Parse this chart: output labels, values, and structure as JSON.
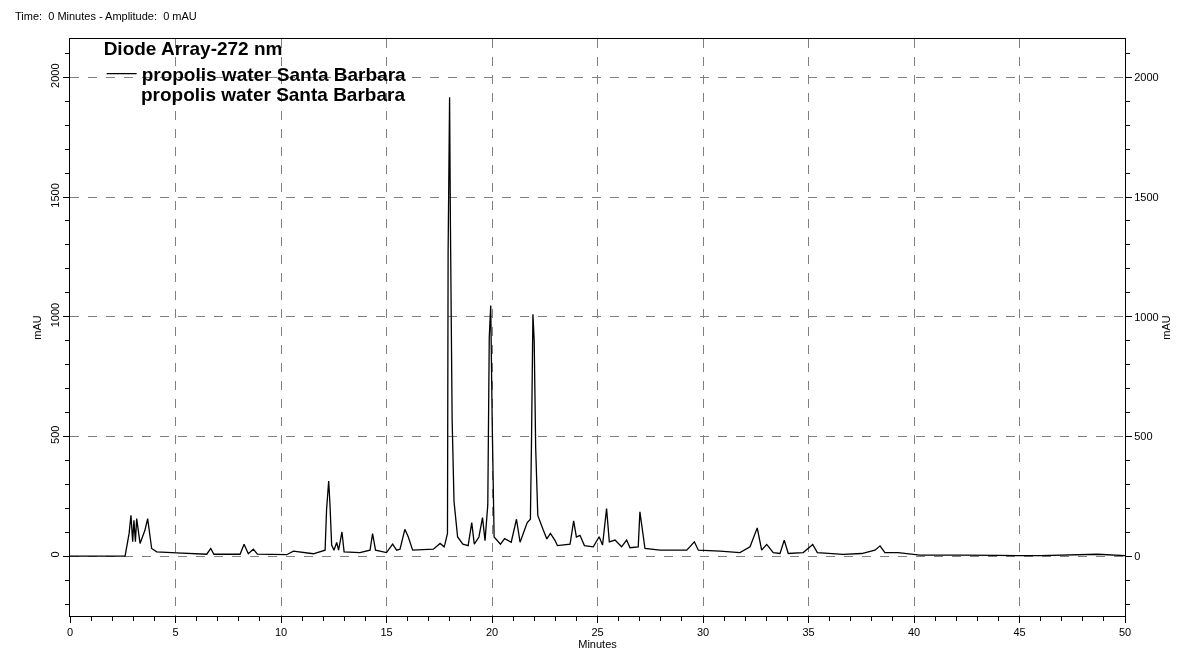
{
  "chart_data": {
    "type": "line",
    "title": "Time:  0 Minutes - Amplitude:  0 mAU",
    "xlabel": "Minutes",
    "ylabel": "mAU",
    "y2label": "mAU",
    "legend_title": "Diode Array-272 nm",
    "annotations": [
      "propolis water Santa Barbara"
    ],
    "legend": "top left",
    "grid": true,
    "line_style": "solid",
    "marker": "none",
    "xlim": [
      0,
      50
    ],
    "xticks": [
      0,
      {
        "value": 1,
        "label": null
      },
      {
        "value": 2,
        "label": null
      },
      {
        "value": 3,
        "label": null
      },
      {
        "value": 4,
        "label": null
      },
      5,
      {
        "value": 6,
        "label": null
      },
      {
        "value": 7,
        "label": null
      },
      {
        "value": 8,
        "label": null
      },
      {
        "value": 9,
        "label": null
      },
      10,
      {
        "value": 11,
        "label": null
      },
      {
        "value": 12,
        "label": null
      },
      {
        "value": 13,
        "label": null
      },
      {
        "value": 14,
        "label": null
      },
      15,
      {
        "value": 16,
        "label": null
      },
      {
        "value": 17,
        "label": null
      },
      {
        "value": 18,
        "label": null
      },
      {
        "value": 19,
        "label": null
      },
      20,
      {
        "value": 21,
        "label": null
      },
      {
        "value": 22,
        "label": null
      },
      {
        "value": 23,
        "label": null
      },
      {
        "value": 24,
        "label": null
      },
      25,
      {
        "value": 26,
        "label": null
      },
      {
        "value": 27,
        "label": null
      },
      {
        "value": 28,
        "label": null
      },
      {
        "value": 29,
        "label": null
      },
      30,
      {
        "value": 31,
        "label": null
      },
      {
        "value": 32,
        "label": null
      },
      {
        "value": 33,
        "label": null
      },
      {
        "value": 34,
        "label": null
      },
      35,
      {
        "value": 36,
        "label": null
      },
      {
        "value": 37,
        "label": null
      },
      {
        "value": 38,
        "label": null
      },
      {
        "value": 39,
        "label": null
      },
      40,
      {
        "value": 41,
        "label": null
      },
      {
        "value": 42,
        "label": null
      },
      {
        "value": 43,
        "label": null
      },
      {
        "value": 44,
        "label": null
      },
      45,
      {
        "value": 46,
        "label": null
      },
      {
        "value": 47,
        "label": null
      },
      {
        "value": 48,
        "label": null
      },
      {
        "value": 49,
        "label": null
      },
      50
    ],
    "ylim": [
      -250,
      2160
    ],
    "yticks": [
      {
        "value": -200,
        "label": null
      },
      {
        "value": -100,
        "label": null
      },
      0,
      {
        "value": 100,
        "label": null
      },
      {
        "value": 200,
        "label": null
      },
      {
        "value": 300,
        "label": null
      },
      {
        "value": 400,
        "label": null
      },
      500,
      {
        "value": 600,
        "label": null
      },
      {
        "value": 700,
        "label": null
      },
      {
        "value": 800,
        "label": null
      },
      {
        "value": 900,
        "label": null
      },
      1000,
      {
        "value": 1100,
        "label": null
      },
      {
        "value": 1200,
        "label": null
      },
      {
        "value": 1300,
        "label": null
      },
      {
        "value": 1400,
        "label": null
      },
      1500,
      {
        "value": 1600,
        "label": null
      },
      {
        "value": 1700,
        "label": null
      },
      {
        "value": 1800,
        "label": null
      },
      {
        "value": 1900,
        "label": null
      },
      2000,
      {
        "value": 2100,
        "label": null
      }
    ],
    "y2lim": [
      -250,
      2160
    ],
    "y2ticks": [
      {
        "value": -200,
        "label": null
      },
      {
        "value": -100,
        "label": null
      },
      0,
      {
        "value": 100,
        "label": null
      },
      {
        "value": 200,
        "label": null
      },
      {
        "value": 300,
        "label": null
      },
      {
        "value": 400,
        "label": null
      },
      500,
      {
        "value": 600,
        "label": null
      },
      {
        "value": 700,
        "label": null
      },
      {
        "value": 800,
        "label": null
      },
      {
        "value": 900,
        "label": null
      },
      1000,
      {
        "value": 1100,
        "label": null
      },
      {
        "value": 1200,
        "label": null
      },
      {
        "value": 1300,
        "label": null
      },
      {
        "value": 1400,
        "label": null
      },
      1500,
      {
        "value": 1600,
        "label": null
      },
      {
        "value": 1700,
        "label": null
      },
      {
        "value": 1800,
        "label": null
      },
      {
        "value": 1900,
        "label": null
      },
      2000,
      {
        "value": 2100,
        "label": null
      }
    ],
    "series": [
      {
        "name": "propolis water Santa Barbara",
        "color": "#000000",
        "x": [
          0,
          2.61,
          2.8,
          2.89,
          2.97,
          3.03,
          3.1,
          3.16,
          3.32,
          3.55,
          3.68,
          3.87,
          4.11,
          5.05,
          6.48,
          6.67,
          6.82,
          8.06,
          8.25,
          8.45,
          8.69,
          8.88,
          10.27,
          10.59,
          11.53,
          12.09,
          12.16,
          12.26,
          12.32,
          12.4,
          12.51,
          12.64,
          12.73,
          12.89,
          12.99,
          13.74,
          14.22,
          14.34,
          14.48,
          15.0,
          15.29,
          15.48,
          15.64,
          15.87,
          16.03,
          16.24,
          17.22,
          17.54,
          17.73,
          17.77,
          17.89,
          17.92,
          17.99,
          18.03,
          18.11,
          18.2,
          18.37,
          18.62,
          18.87,
          19.04,
          19.16,
          19.38,
          19.55,
          19.67,
          19.8,
          19.87,
          19.94,
          20.01,
          20.1,
          20.4,
          20.6,
          20.91,
          21.16,
          21.33,
          21.67,
          21.82,
          21.87,
          21.94,
          22.0,
          22.07,
          22.17,
          22.43,
          22.6,
          22.77,
          22.99,
          23.1,
          23.7,
          23.87,
          24.0,
          24.17,
          24.38,
          24.8,
          25.08,
          25.24,
          25.43,
          25.56,
          25.83,
          26.14,
          26.38,
          26.54,
          26.93,
          27.01,
          27.25,
          27.96,
          29.23,
          29.59,
          29.78,
          30.81,
          31.75,
          32.23,
          32.57,
          32.78,
          33.02,
          33.33,
          33.65,
          33.85,
          34.04,
          34.75,
          35.2,
          35.42,
          36.65,
          37.52,
          38.15,
          38.39,
          38.62,
          39.25,
          40.28,
          42.18,
          44,
          46,
          48.7,
          50
        ],
        "values": [
          0,
          0,
          94,
          171,
          60,
          150,
          60,
          157,
          53,
          108,
          157,
          32,
          18,
          14,
          8,
          32,
          8,
          8,
          50,
          10,
          29,
          8,
          6,
          21,
          10,
          25,
          196,
          314,
          219,
          46,
          25,
          57,
          25,
          101,
          18,
          15,
          25,
          94,
          25,
          15,
          50,
          25,
          29,
          112,
          81,
          25,
          29,
          53,
          39,
          50,
          95,
          1270,
          1917,
          1382,
          571,
          228,
          80,
          50,
          44,
          140,
          50,
          80,
          161,
          65,
          214,
          913,
          1047,
          557,
          80,
          50,
          73,
          58,
          154,
          58,
          140,
          154,
          467,
          1010,
          899,
          453,
          170,
          109,
          72,
          95,
          65,
          44,
          50,
          147,
          80,
          87,
          44,
          39,
          81,
          46,
          199,
          60,
          67,
          39,
          67,
          35,
          39,
          185,
          32,
          25,
          25,
          60,
          25,
          21,
          15,
          39,
          118,
          25,
          49,
          15,
          11,
          67,
          11,
          15,
          49,
          15,
          7,
          11,
          25,
          43,
          15,
          15,
          4,
          4,
          3,
          2,
          8,
          2
        ]
      }
    ]
  }
}
